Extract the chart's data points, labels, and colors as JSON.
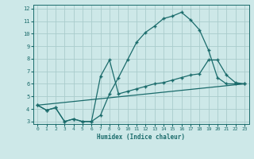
{
  "xlabel": "Humidex (Indice chaleur)",
  "background_color": "#cde8e8",
  "grid_color": "#aacccc",
  "line_color": "#1a6b6b",
  "xlim": [
    -0.5,
    23.5
  ],
  "ylim": [
    2.8,
    12.3
  ],
  "xticks": [
    0,
    1,
    2,
    3,
    4,
    5,
    6,
    7,
    8,
    9,
    10,
    11,
    12,
    13,
    14,
    15,
    16,
    17,
    18,
    19,
    20,
    21,
    22,
    23
  ],
  "yticks": [
    3,
    4,
    5,
    6,
    7,
    8,
    9,
    10,
    11,
    12
  ],
  "line1_x": [
    0,
    1,
    2,
    3,
    4,
    5,
    6,
    7,
    8,
    9,
    10,
    11,
    12,
    13,
    14,
    15,
    16,
    17,
    18,
    19,
    20,
    21,
    22,
    23
  ],
  "line1_y": [
    4.3,
    3.9,
    4.1,
    3.0,
    3.2,
    3.0,
    3.0,
    3.5,
    5.2,
    6.5,
    7.9,
    9.3,
    10.1,
    10.6,
    11.2,
    11.4,
    11.7,
    11.1,
    10.3,
    8.7,
    6.5,
    6.0,
    6.0,
    6.0
  ],
  "line2_x": [
    0,
    1,
    2,
    3,
    4,
    5,
    6,
    7,
    8,
    9,
    10,
    11,
    12,
    13,
    14,
    15,
    16,
    17,
    18,
    19,
    20,
    21,
    22,
    23
  ],
  "line2_y": [
    4.3,
    3.9,
    4.1,
    3.0,
    3.2,
    3.0,
    3.0,
    6.6,
    7.9,
    5.2,
    5.4,
    5.6,
    5.8,
    6.0,
    6.1,
    6.3,
    6.5,
    6.7,
    6.8,
    7.9,
    7.9,
    6.7,
    6.1,
    6.0
  ],
  "line3_x": [
    0,
    23
  ],
  "line3_y": [
    4.3,
    6.0
  ]
}
